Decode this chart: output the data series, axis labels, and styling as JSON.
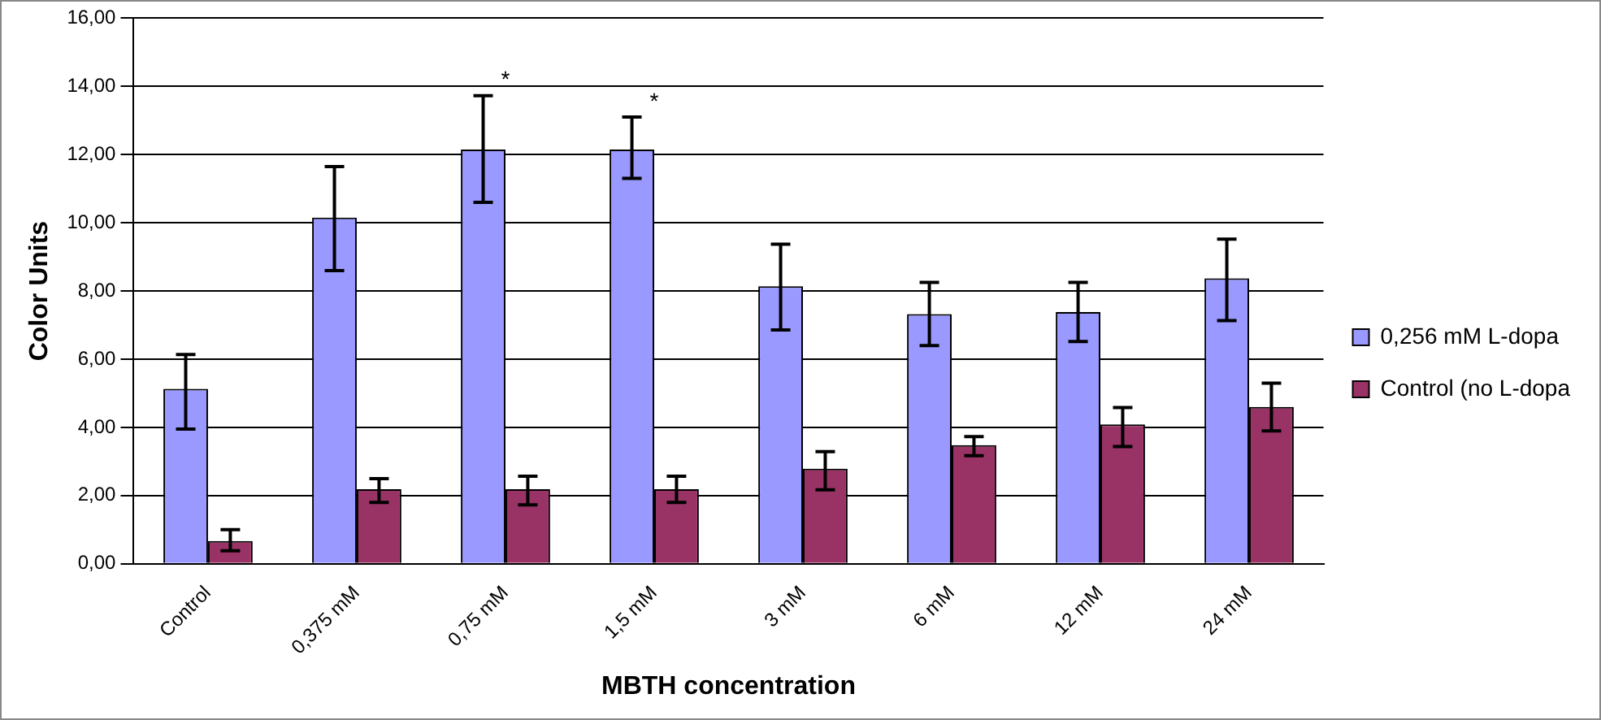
{
  "chart_data": {
    "type": "bar",
    "xlabel": "MBTH concentration",
    "ylabel": "Color Units",
    "categories": [
      "Control",
      "0,375 mM",
      "0,75 mM",
      "1,5 mM",
      "3 mM",
      "6 mM",
      "12 mM",
      "24 mM"
    ],
    "series": [
      {
        "name": "0,256 mM L-dopa",
        "color": "#9999ff",
        "values": [
          5.13,
          10.15,
          12.15,
          12.15,
          8.14,
          7.32,
          7.38,
          8.37
        ],
        "errors": [
          [
            3.95,
            6.14
          ],
          [
            8.6,
            11.65
          ],
          [
            10.6,
            13.73
          ],
          [
            11.3,
            13.1
          ],
          [
            6.86,
            9.37
          ],
          [
            6.4,
            8.25
          ],
          [
            6.52,
            8.25
          ],
          [
            7.13,
            9.52
          ]
        ]
      },
      {
        "name": "Control (no L-dopa",
        "color": "#993366",
        "values": [
          0.67,
          2.19,
          2.19,
          2.19,
          2.79,
          3.48,
          4.09,
          4.6
        ],
        "errors": [
          [
            0.38,
            1.0
          ],
          [
            1.8,
            2.5
          ],
          [
            1.73,
            2.57
          ],
          [
            1.8,
            2.57
          ],
          [
            2.17,
            3.29
          ],
          [
            3.17,
            3.73
          ],
          [
            3.44,
            4.58
          ],
          [
            3.9,
            5.3
          ]
        ]
      }
    ],
    "ylim": [
      0,
      16
    ],
    "yticks": [
      {
        "value": 0,
        "label": "0,00"
      },
      {
        "value": 2,
        "label": "2,00"
      },
      {
        "value": 4,
        "label": "4,00"
      },
      {
        "value": 6,
        "label": "6,00"
      },
      {
        "value": 8,
        "label": "8,00"
      },
      {
        "value": 10,
        "label": "10,00"
      },
      {
        "value": 12,
        "label": "12,00"
      },
      {
        "value": 14,
        "label": "14,00"
      },
      {
        "value": 16,
        "label": "16,00"
      }
    ],
    "annotations": [
      {
        "text": "*",
        "x": "0,75 mM",
        "y": 13.73
      },
      {
        "text": "*",
        "x": "1,5 mM",
        "y": 13.1
      }
    ],
    "grid": "y",
    "legend": "right"
  }
}
